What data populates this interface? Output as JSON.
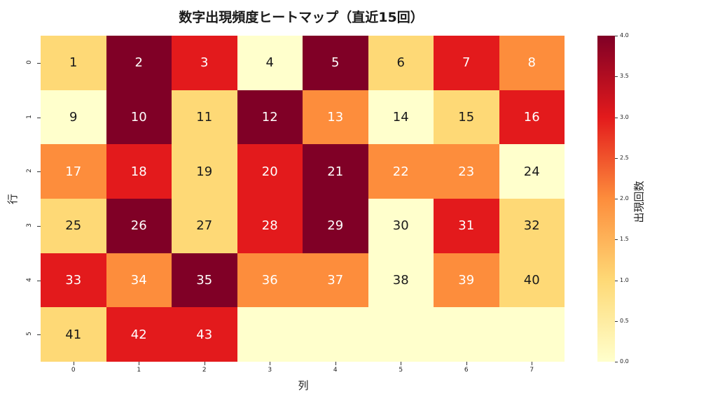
{
  "title": "数字出現頻度ヒートマップ（直近15回）",
  "chart_data": {
    "type": "heatmap",
    "title": "数字出現頻度ヒートマップ（直近15回）",
    "xlabel": "列",
    "ylabel": "行",
    "colorbar_label": "出現回数",
    "colormap": "YlOrRd",
    "vmin": 0,
    "vmax": 4,
    "colorbar_ticks": [
      "0.0",
      "0.5",
      "1.0",
      "1.5",
      "2.0",
      "2.5",
      "3.0",
      "3.5",
      "4.0"
    ],
    "x_ticks": [
      "0",
      "1",
      "2",
      "3",
      "4",
      "5",
      "6",
      "7"
    ],
    "y_ticks": [
      "0",
      "1",
      "2",
      "3",
      "4",
      "5"
    ],
    "annotations": [
      [
        "1",
        "2",
        "3",
        "4",
        "5",
        "6",
        "7",
        "8"
      ],
      [
        "9",
        "10",
        "11",
        "12",
        "13",
        "14",
        "15",
        "16"
      ],
      [
        "17",
        "18",
        "19",
        "20",
        "21",
        "22",
        "23",
        "24"
      ],
      [
        "25",
        "26",
        "27",
        "28",
        "29",
        "30",
        "31",
        "32"
      ],
      [
        "33",
        "34",
        "35",
        "36",
        "37",
        "38",
        "39",
        "40"
      ],
      [
        "41",
        "42",
        "43",
        "",
        "",
        "",
        "",
        ""
      ]
    ],
    "values": [
      [
        1,
        4,
        3,
        0,
        4,
        1,
        3,
        2
      ],
      [
        0,
        4,
        1,
        4,
        2,
        0,
        1,
        3
      ],
      [
        2,
        3,
        1,
        3,
        4,
        2,
        2,
        0
      ],
      [
        1,
        4,
        1,
        3,
        4,
        0,
        3,
        1
      ],
      [
        3,
        2,
        4,
        2,
        2,
        0,
        2,
        1
      ],
      [
        1,
        3,
        3,
        0,
        0,
        0,
        0,
        0
      ]
    ],
    "color_scale": {
      "0": "#ffffcc",
      "1": "#fed976",
      "2": "#fd8d3c",
      "3": "#e31a1c",
      "4": "#800026"
    }
  }
}
